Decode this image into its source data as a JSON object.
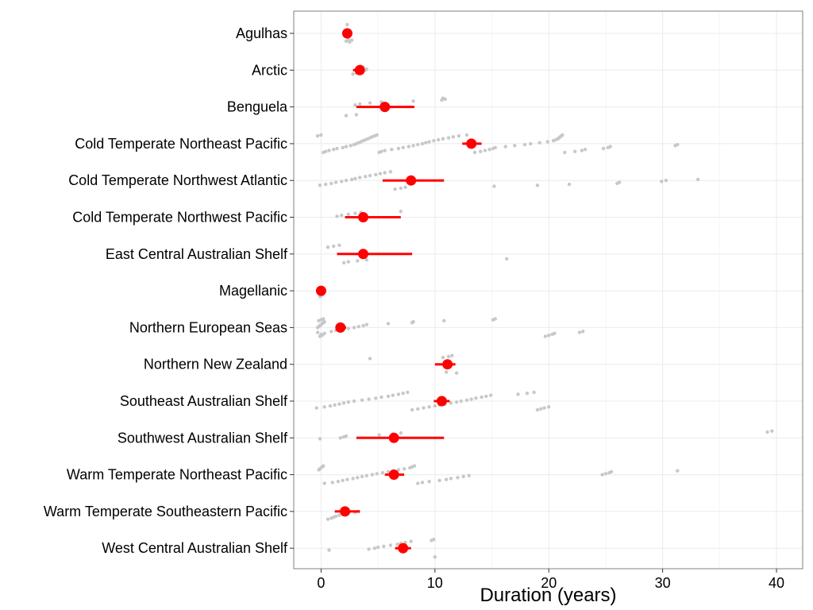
{
  "chart_data": {
    "type": "scatter",
    "title": "",
    "xlabel": "Duration (years)",
    "ylabel": "",
    "xlim": [
      -2.4,
      42.3
    ],
    "x_ticks": [
      0,
      10,
      20,
      30,
      40
    ],
    "grid": true,
    "legend": "none",
    "colors": {
      "points": "#c8c8c8",
      "summary": "#ff0000",
      "grid": "#ebebeb",
      "panel_border": "#7f7f7f"
    },
    "categories": [
      "Agulhas",
      "Arctic",
      "Benguela",
      "Cold Temperate Northeast Pacific",
      "Cold Temperate Northwest Atlantic",
      "Cold Temperate Northwest Pacific",
      "East Central Australian Shelf",
      "Magellanic",
      "Northern European Seas",
      "Northern New Zealand",
      "Southeast Australian Shelf",
      "Southwest Australian Shelf",
      "Warm Temperate Northeast Pacific",
      "Warm Temperate Southeastern Pacific",
      "West Central Australian Shelf"
    ],
    "summary": [
      {
        "category": "Agulhas",
        "mean": 2.3,
        "low": 2.1,
        "high": 2.5
      },
      {
        "category": "Arctic",
        "mean": 3.4,
        "low": 2.8,
        "high": 3.8
      },
      {
        "category": "Benguela",
        "mean": 5.6,
        "low": 3.1,
        "high": 8.2
      },
      {
        "category": "Cold Temperate Northeast Pacific",
        "mean": 13.2,
        "low": 12.4,
        "high": 14.1
      },
      {
        "category": "Cold Temperate Northwest Atlantic",
        "mean": 7.9,
        "low": 5.4,
        "high": 10.8
      },
      {
        "category": "Cold Temperate Northwest Pacific",
        "mean": 3.7,
        "low": 2.1,
        "high": 7.0
      },
      {
        "category": "East Central Australian Shelf",
        "mean": 3.7,
        "low": 1.4,
        "high": 8.0
      },
      {
        "category": "Magellanic",
        "mean": 0.0,
        "low": -0.1,
        "high": 0.1
      },
      {
        "category": "Northern European Seas",
        "mean": 1.7,
        "low": 1.3,
        "high": 2.2
      },
      {
        "category": "Northern New Zealand",
        "mean": 11.1,
        "low": 10.0,
        "high": 11.8
      },
      {
        "category": "Southeast Australian Shelf",
        "mean": 10.6,
        "low": 9.9,
        "high": 11.3
      },
      {
        "category": "Southwest Australian Shelf",
        "mean": 6.4,
        "low": 3.1,
        "high": 10.8
      },
      {
        "category": "Warm Temperate Northeast Pacific",
        "mean": 6.4,
        "low": 5.6,
        "high": 7.3
      },
      {
        "category": "Warm Temperate Southeastern Pacific",
        "mean": 2.1,
        "low": 1.2,
        "high": 3.4
      },
      {
        "category": "West Central Australian Shelf",
        "mean": 7.2,
        "low": 6.5,
        "high": 7.9
      }
    ],
    "points": [
      {
        "category": "Agulhas",
        "x": [
          2.3,
          2.5,
          2.2,
          2.7,
          2.4
        ]
      },
      {
        "category": "Arctic",
        "x": [
          2.8,
          3.1,
          3.4,
          3.6,
          3.9,
          4.0,
          3.3,
          3.7,
          3.5
        ]
      },
      {
        "category": "Benguela",
        "x": [
          3.0,
          3.4,
          4.3,
          5.3,
          8.1,
          10.6,
          10.9,
          10.7,
          2.2,
          3.1
        ]
      },
      {
        "category": "Cold Temperate Northeast Pacific",
        "x": [
          -0.3,
          0.0,
          0.2,
          0.4,
          0.7,
          1.1,
          1.4,
          1.9,
          2.2,
          2.6,
          2.9,
          3.1,
          3.3,
          3.5,
          3.7,
          3.9,
          4.1,
          4.3,
          4.5,
          4.7,
          4.9,
          5.1,
          5.3,
          5.6,
          6.2,
          6.8,
          7.2,
          7.7,
          8.1,
          8.5,
          8.9,
          9.2,
          9.5,
          9.9,
          10.3,
          10.7,
          11.2,
          11.6,
          12.1,
          12.8,
          13.5,
          14.0,
          14.4,
          14.8,
          15.1,
          15.3,
          16.2,
          17.0,
          17.9,
          18.4,
          19.2,
          19.9,
          20.4,
          20.6,
          20.8,
          20.9,
          21.0,
          21.1,
          21.2,
          21.4,
          22.3,
          22.9,
          23.2,
          24.8,
          25.2,
          25.4,
          31.1,
          31.3
        ]
      },
      {
        "category": "Cold Temperate Northwest Atlantic",
        "x": [
          -0.1,
          0.4,
          0.9,
          1.3,
          1.8,
          2.2,
          2.7,
          3.0,
          3.4,
          3.9,
          4.3,
          4.8,
          5.2,
          5.6,
          6.1,
          6.5,
          7.0,
          7.4,
          15.2,
          19.0,
          21.8,
          26.0,
          26.2,
          29.9,
          30.3,
          33.1
        ]
      },
      {
        "category": "Cold Temperate Northwest Pacific",
        "x": [
          1.4,
          1.8,
          2.4,
          3.0,
          3.5,
          7.0
        ]
      },
      {
        "category": "East Central Australian Shelf",
        "x": [
          0.6,
          1.1,
          1.6,
          2.0,
          2.4,
          3.2,
          4.0,
          16.3
        ]
      },
      {
        "category": "Magellanic",
        "x": [
          -0.1,
          0.0,
          0.1,
          0.2
        ]
      },
      {
        "category": "Northern European Seas",
        "x": [
          -0.3,
          -0.2,
          -0.1,
          0.0,
          0.1,
          0.2,
          0.3,
          -0.2,
          0.0,
          0.2,
          -0.1,
          0.1,
          0.0,
          0.3,
          -0.3,
          0.9,
          1.3,
          1.8,
          2.4,
          2.9,
          3.3,
          3.7,
          4.0,
          5.9,
          8.0,
          8.1,
          10.8,
          15.1,
          15.3,
          19.7,
          20.0,
          20.3,
          20.5,
          22.7,
          23.0
        ]
      },
      {
        "category": "Northern New Zealand",
        "x": [
          4.3,
          10.7,
          11.2,
          11.5,
          11.9,
          11.0
        ]
      },
      {
        "category": "Southeast Australian Shelf",
        "x": [
          -0.4,
          0.3,
          0.8,
          1.2,
          1.6,
          2.0,
          2.4,
          2.9,
          3.6,
          4.2,
          4.8,
          5.3,
          5.9,
          6.3,
          6.8,
          7.2,
          7.6,
          8.0,
          8.5,
          9.0,
          9.5,
          10.0,
          10.4,
          10.9,
          11.4,
          11.9,
          12.3,
          12.8,
          13.2,
          13.6,
          14.1,
          14.5,
          14.9,
          17.3,
          18.1,
          18.7,
          19.0,
          19.3,
          19.6,
          20.0
        ]
      },
      {
        "category": "Southwest Australian Shelf",
        "x": [
          -0.1,
          1.7,
          2.0,
          2.2,
          5.1,
          6.3,
          7.0,
          39.2,
          39.6
        ]
      },
      {
        "category": "Warm Temperate Northeast Pacific",
        "x": [
          -0.2,
          -0.1,
          0.0,
          0.1,
          0.2,
          0.3,
          1.0,
          1.5,
          1.9,
          2.3,
          2.8,
          3.2,
          3.6,
          4.0,
          4.5,
          4.9,
          5.4,
          5.9,
          6.3,
          6.8,
          7.3,
          7.8,
          8.0,
          8.2,
          8.5,
          8.9,
          9.5,
          10.4,
          11.0,
          11.4,
          12.0,
          12.5,
          13.0,
          24.7,
          25.0,
          25.3,
          25.5,
          31.3
        ]
      },
      {
        "category": "Warm Temperate Southeastern Pacific",
        "x": [
          0.6,
          0.9,
          1.1,
          1.3,
          1.6,
          2.0,
          2.4,
          3.0,
          3.3
        ]
      },
      {
        "category": "West Central Australian Shelf",
        "x": [
          0.7,
          4.2,
          4.7,
          5.0,
          5.5,
          6.1,
          6.7,
          7.0,
          7.4,
          7.9,
          9.7,
          9.9,
          10.0
        ]
      }
    ]
  }
}
